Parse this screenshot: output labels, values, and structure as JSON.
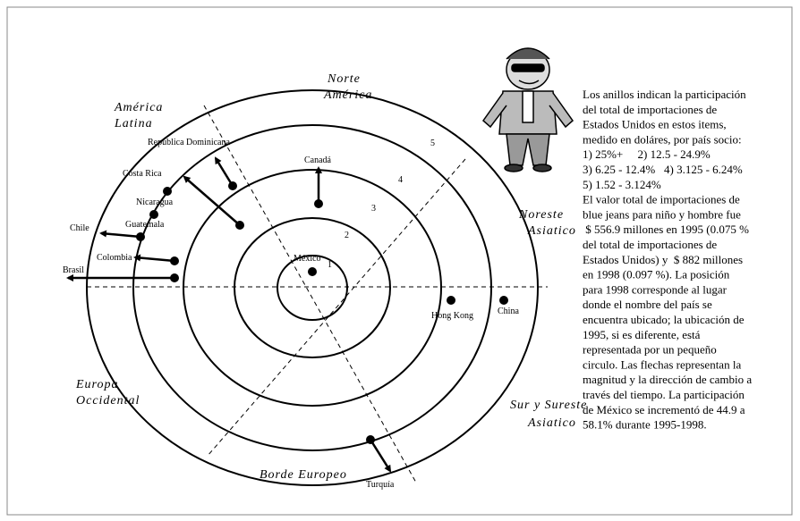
{
  "regions": [
    {
      "lines": [
        "Norte",
        "América"
      ]
    },
    {
      "lines": [
        "América",
        "Latina"
      ]
    },
    {
      "lines": [
        "Noreste",
        "Asiatico"
      ]
    },
    {
      "lines": [
        "Europa",
        "Occidental"
      ]
    },
    {
      "lines": [
        "Sur y Sureste",
        "Asiatico"
      ]
    },
    {
      "lines": [
        "Borde Europeo"
      ]
    }
  ],
  "ring_labels": [
    "1",
    "2",
    "3",
    "4",
    "5"
  ],
  "countries": [
    "México",
    "Canadá",
    "República Dominicana",
    "Costa Rica",
    "Nicaragua",
    "Guatemala",
    "Chile",
    "Colombia",
    "Brasil",
    "Hong Kong",
    "China",
    "Turquía"
  ],
  "description": [
    "Los anillos indican la participación",
    "del total de importaciones de",
    "Estados Unidos en estos items,",
    "medido en doláres, por país socio:",
    "1) 25%+     2) 12.5 - 24.9%",
    "3) 6.25 - 12.4%   4) 3.125 - 6.24%",
    "5) 1.52 - 3.124%",
    "El valor total de importaciones de",
    "blue jeans para niño y hombre fue",
    " $ 556.9 millones en 1995 (0.075 %",
    "del total de importaciones de",
    "Estados Unidos) y  $ 882 millones",
    "en 1998 (0.097 %). La posición",
    "para 1998 corresponde al lugar",
    "donde el nombre del país se",
    "encuentra ubicado; la ubicación de",
    "1995, si es diferente, está",
    "representada por un pequeño",
    "circulo. Las flechas representan la",
    "magnitud y la dirección de cambio a",
    "través del tiempo. La participación",
    "de México se incrementó de 44.9 a",
    "58.1% durante 1995-1998."
  ]
}
